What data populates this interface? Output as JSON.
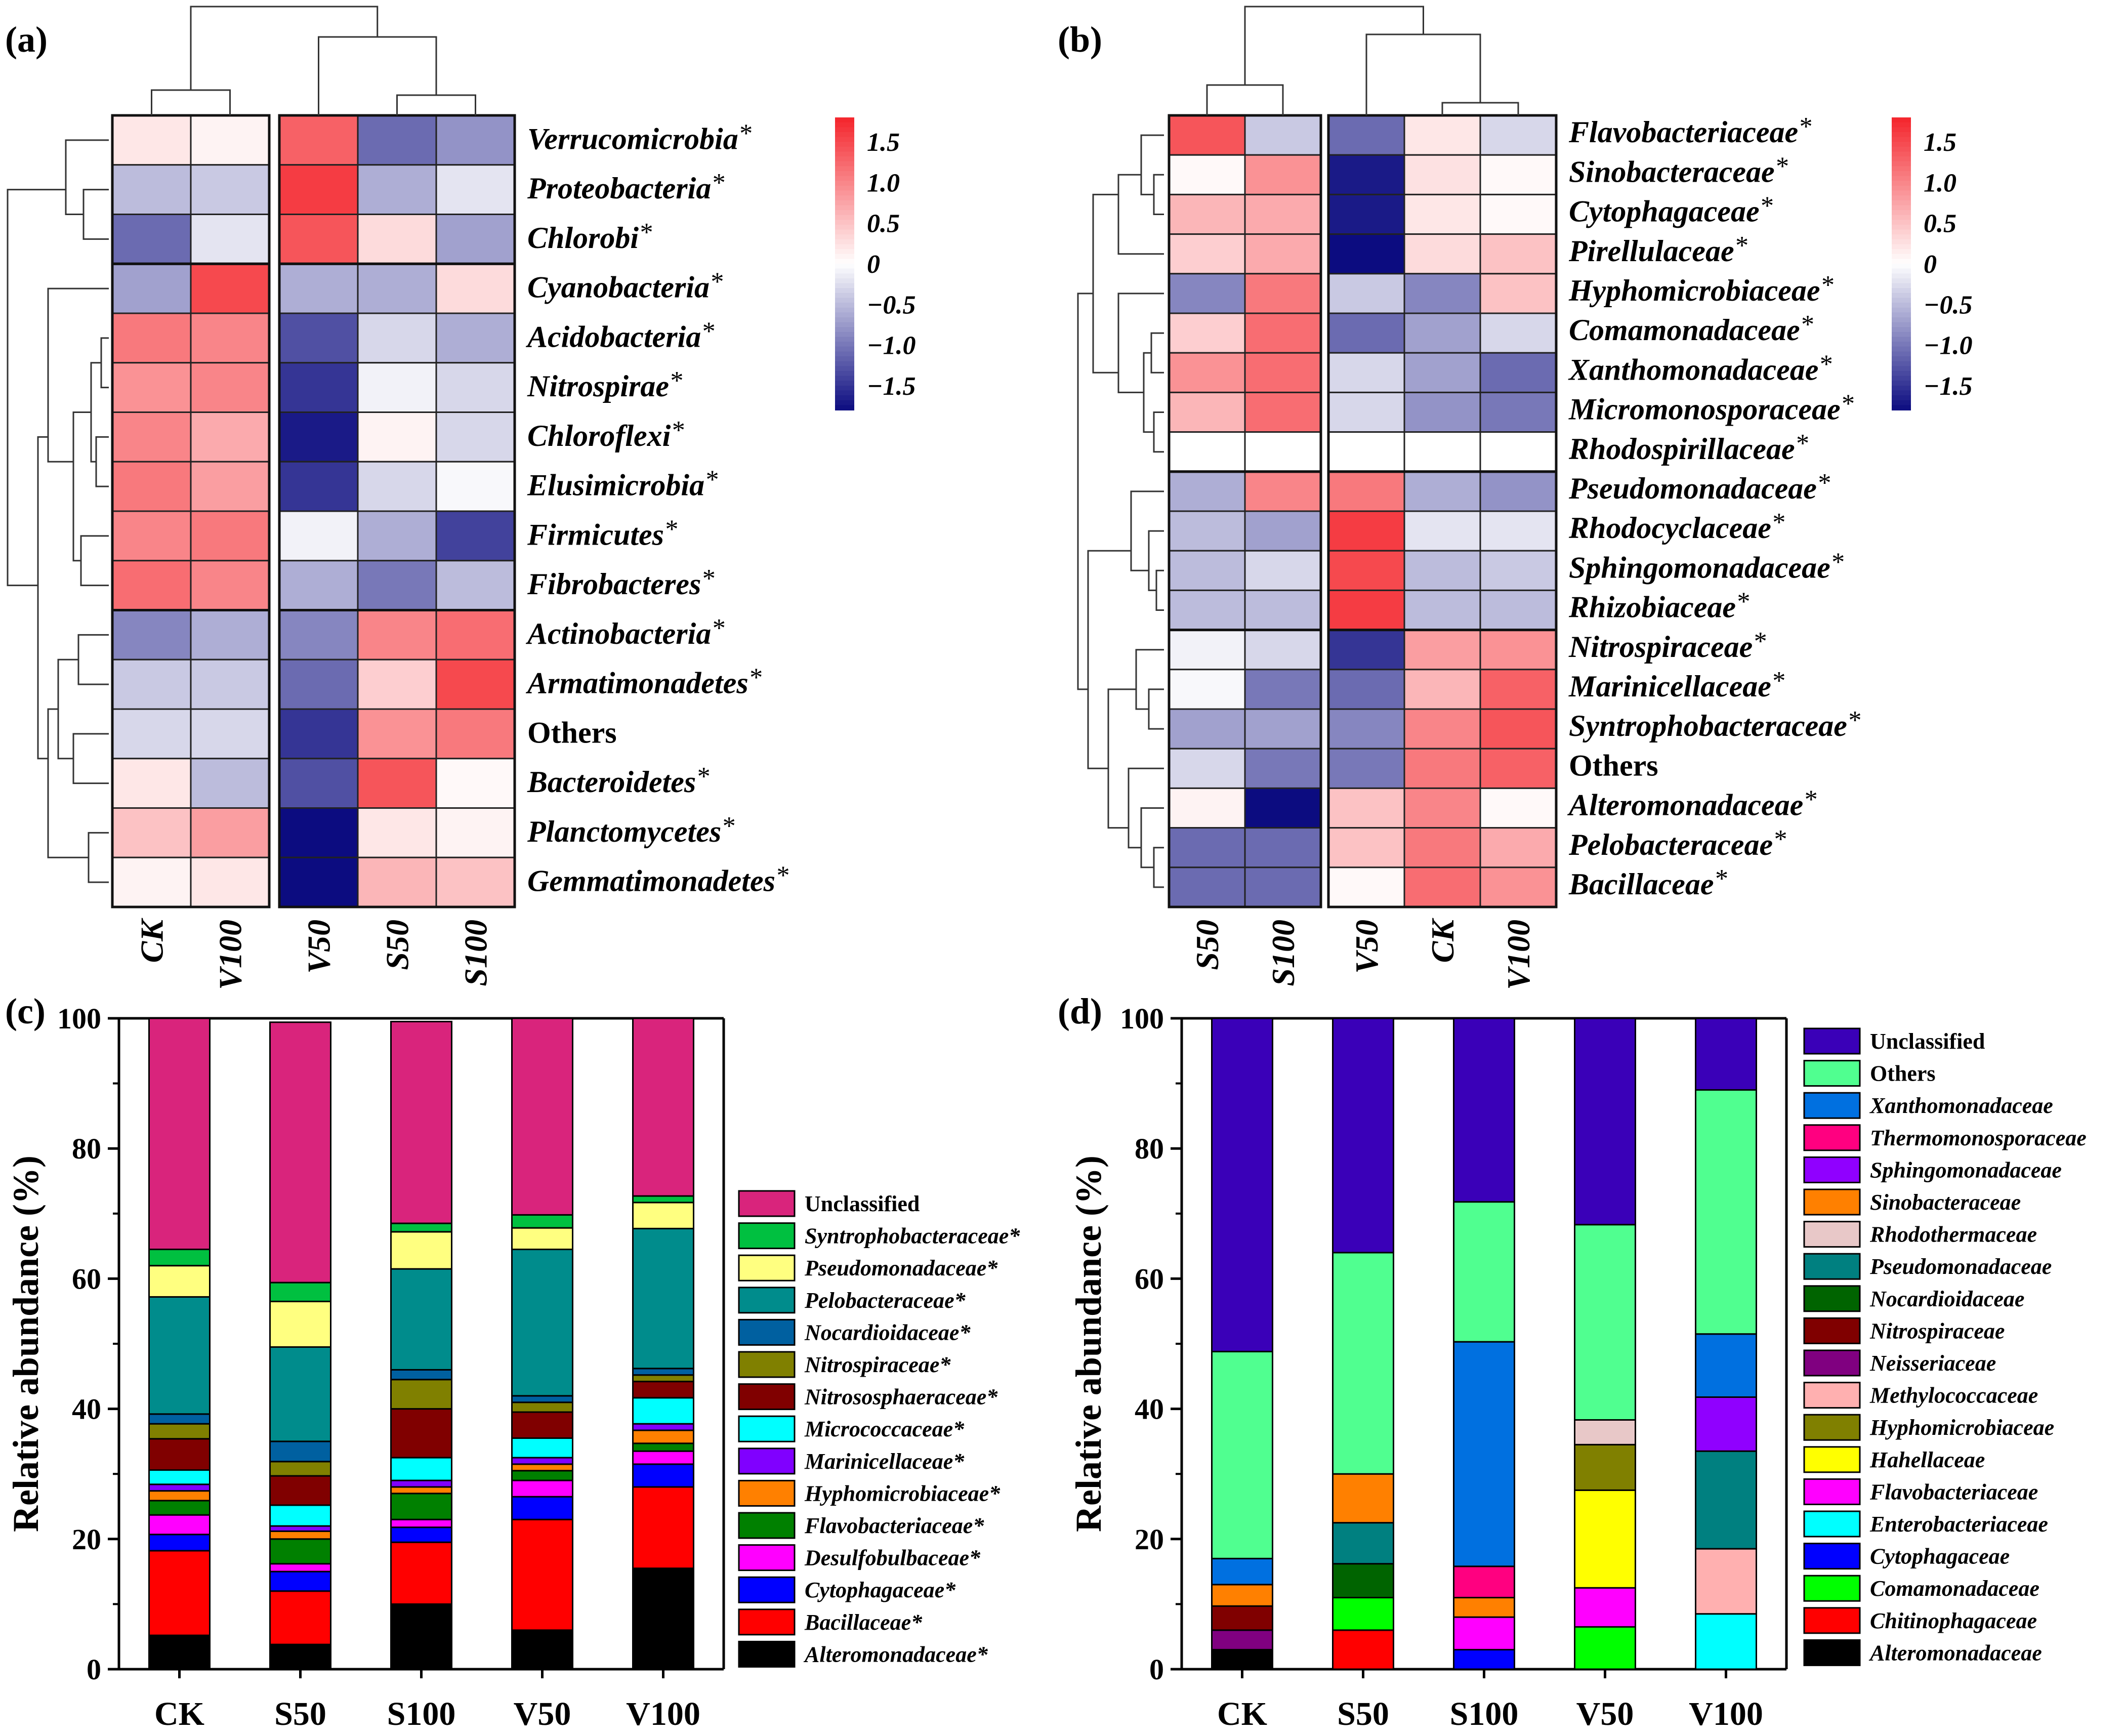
{
  "panel_labels": [
    "(a)",
    "(b)",
    "(c)",
    "(d)"
  ],
  "colorbar": {
    "ticks": [
      "1.5",
      "1.0",
      "0.5",
      "0",
      "−0.5",
      "−1.0",
      "−1.5"
    ],
    "ticks_values": [
      1.5,
      1.0,
      0.5,
      0,
      -0.5,
      -1.0,
      -1.5
    ],
    "range": [
      -1.8,
      1.8
    ],
    "low_color": "#0c0c80",
    "mid_color": "#ffffff",
    "high_color": "#f4242b"
  },
  "chart_data": [
    {
      "id": "a",
      "type": "heatmap",
      "title": "(a)",
      "columns": [
        "CK",
        "V100",
        "V50",
        "S50",
        "S100"
      ],
      "rows": [
        {
          "name": "Verrucomicrobia",
          "star": "*",
          "italic": true
        },
        {
          "name": "Proteobacteria",
          "star": "*",
          "italic": true
        },
        {
          "name": "Chlorobi",
          "star": "*",
          "italic": true
        },
        {
          "name": "Cyanobacteria",
          "star": "*",
          "italic": true
        },
        {
          "name": "Acidobacteria",
          "star": "*",
          "italic": true
        },
        {
          "name": "Nitrospirae",
          "star": "*",
          "italic": true
        },
        {
          "name": "Chloroflexi",
          "star": "*",
          "italic": true
        },
        {
          "name": "Elusimicrobia",
          "star": "*",
          "italic": true
        },
        {
          "name": "Firmicutes",
          "star": "*",
          "italic": true
        },
        {
          "name": "Fibrobacteres",
          "star": "*",
          "italic": true
        },
        {
          "name": "Actinobacteria",
          "star": "*",
          "italic": true
        },
        {
          "name": "Armatimonadetes",
          "star": "*",
          "italic": true
        },
        {
          "name": "Others",
          "star": "",
          "italic": false
        },
        {
          "name": "Bacteroidetes",
          "star": "*",
          "italic": true
        },
        {
          "name": "Planctomycetes",
          "star": "*",
          "italic": true
        },
        {
          "name": "Gemmatimonadetes",
          "star": "*",
          "italic": true
        }
      ],
      "values": [
        [
          0.2,
          0.1,
          1.3,
          -1.1,
          -0.8
        ],
        [
          -0.5,
          -0.4,
          1.6,
          -0.6,
          -0.2
        ],
        [
          -1.1,
          -0.2,
          1.4,
          0.3,
          -0.7
        ],
        [
          -0.7,
          1.5,
          -0.6,
          -0.6,
          0.3
        ],
        [
          1.1,
          1.0,
          -1.3,
          -0.3,
          -0.6
        ],
        [
          0.9,
          1.0,
          -1.5,
          -0.1,
          -0.3
        ],
        [
          1.0,
          0.7,
          -1.7,
          0.1,
          -0.3
        ],
        [
          1.1,
          0.8,
          -1.5,
          -0.3,
          -0.05
        ],
        [
          1.0,
          1.1,
          -0.1,
          -0.6,
          -1.4
        ],
        [
          1.2,
          1.0,
          -0.6,
          -1.0,
          -0.5
        ],
        [
          -0.9,
          -0.6,
          -0.9,
          1.0,
          1.2
        ],
        [
          -0.4,
          -0.4,
          -1.1,
          0.4,
          1.5
        ],
        [
          -0.3,
          -0.3,
          -1.5,
          0.9,
          1.1
        ],
        [
          0.2,
          -0.5,
          -1.3,
          1.4,
          0.05
        ],
        [
          0.5,
          0.8,
          -1.8,
          0.2,
          0.1
        ],
        [
          0.1,
          0.2,
          -1.8,
          0.6,
          0.5
        ]
      ],
      "column_groups": [
        2,
        3
      ],
      "row_groups": [
        3,
        7,
        6
      ]
    },
    {
      "id": "b",
      "type": "heatmap",
      "title": "(b)",
      "columns": [
        "S50",
        "S100",
        "V50",
        "CK",
        "V100"
      ],
      "rows": [
        {
          "name": "Flavobacteriaceae",
          "star": "*",
          "italic": true
        },
        {
          "name": "Sinobacteraceae",
          "star": "*",
          "italic": true
        },
        {
          "name": "Cytophagaceae",
          "star": "*",
          "italic": true
        },
        {
          "name": "Pirellulaceae",
          "star": "*",
          "italic": true
        },
        {
          "name": "Hyphomicrobiaceae",
          "star": "*",
          "italic": true
        },
        {
          "name": "Comamonadaceae",
          "star": "*",
          "italic": true
        },
        {
          "name": "Xanthomonadaceae",
          "star": "*",
          "italic": true
        },
        {
          "name": "Micromonosporaceae",
          "star": "*",
          "italic": true
        },
        {
          "name": "Rhodospirillaceae",
          "star": "*",
          "italic": true
        },
        {
          "name": "Pseudomonadaceae",
          "star": "*",
          "italic": true
        },
        {
          "name": "Rhodocyclaceae",
          "star": "*",
          "italic": true
        },
        {
          "name": "Sphingomonadaceae",
          "star": "*",
          "italic": true
        },
        {
          "name": "Rhizobiaceae",
          "star": "*",
          "italic": true
        },
        {
          "name": "Nitrospiraceae",
          "star": "*",
          "italic": true
        },
        {
          "name": "Marinicellaceae",
          "star": "*",
          "italic": true
        },
        {
          "name": "Syntrophobacteraceae",
          "star": "*",
          "italic": true
        },
        {
          "name": "Others",
          "star": "",
          "italic": false
        },
        {
          "name": "Alteromonadaceae",
          "star": "*",
          "italic": true
        },
        {
          "name": "Pelobacteraceae",
          "star": "*",
          "italic": true
        },
        {
          "name": "Bacillaceae",
          "star": "*",
          "italic": true
        }
      ],
      "values": [
        [
          1.4,
          -0.4,
          -1.1,
          0.2,
          -0.3
        ],
        [
          0.05,
          0.9,
          -1.7,
          0.25,
          0.05
        ],
        [
          0.6,
          0.7,
          -1.7,
          0.2,
          0.05
        ],
        [
          0.4,
          0.7,
          -1.8,
          0.3,
          0.5
        ],
        [
          -0.9,
          1.1,
          -0.4,
          -0.9,
          0.5
        ],
        [
          0.4,
          1.2,
          -1.1,
          -0.7,
          -0.3
        ],
        [
          0.9,
          1.2,
          -0.3,
          -0.7,
          -1.1
        ],
        [
          0.6,
          1.2,
          -0.3,
          -0.8,
          -1.0
        ],
        [
          null,
          null,
          null,
          null,
          null
        ],
        [
          -0.6,
          1.0,
          1.1,
          -0.6,
          -0.8
        ],
        [
          -0.5,
          -0.7,
          1.6,
          -0.2,
          -0.2
        ],
        [
          -0.5,
          -0.3,
          1.5,
          -0.5,
          -0.4
        ],
        [
          -0.5,
          -0.5,
          1.6,
          -0.5,
          -0.5
        ],
        [
          -0.1,
          -0.3,
          -1.5,
          0.8,
          0.9
        ],
        [
          -0.05,
          -1.0,
          -1.1,
          0.6,
          1.3
        ],
        [
          -0.7,
          -0.7,
          -0.9,
          1.0,
          1.4
        ],
        [
          -0.3,
          -1.0,
          -1.0,
          1.1,
          1.3
        ],
        [
          0.1,
          -1.8,
          0.5,
          1.0,
          0.05
        ],
        [
          -1.1,
          -1.1,
          0.5,
          1.1,
          0.7
        ],
        [
          -1.1,
          -1.1,
          0.05,
          1.2,
          0.9
        ]
      ],
      "column_groups": [
        2,
        3
      ],
      "row_groups": [
        9,
        4,
        7
      ]
    },
    {
      "id": "c",
      "type": "bar",
      "stacked": true,
      "title": "(c)",
      "xlabel": "",
      "ylabel": "Relative abundance (%)",
      "ylim": [
        0,
        100
      ],
      "yticks": [
        0,
        20,
        40,
        60,
        80,
        100
      ],
      "categories": [
        "CK",
        "S50",
        "S100",
        "V50",
        "V100"
      ],
      "series": [
        {
          "name": "Alteromonadaceae*",
          "color": "#000000",
          "values": [
            5.2,
            3.8,
            10.0,
            6.0,
            15.5
          ]
        },
        {
          "name": "Bacillaceae*",
          "color": "#ff0000",
          "values": [
            13.0,
            8.2,
            9.5,
            17.0,
            12.5
          ]
        },
        {
          "name": "Cytophagaceae*",
          "color": "#0000ff",
          "values": [
            2.5,
            3.0,
            2.3,
            3.5,
            3.5
          ]
        },
        {
          "name": "Desulfobulbaceae*",
          "color": "#ff00ff",
          "values": [
            3.0,
            1.2,
            1.2,
            2.5,
            2.0
          ]
        },
        {
          "name": "Flavobacteriaceae*",
          "color": "#008000",
          "values": [
            2.2,
            3.8,
            4.0,
            1.5,
            1.2
          ]
        },
        {
          "name": "Hyphomicrobiaceae*",
          "color": "#ff8000",
          "values": [
            1.5,
            1.2,
            1.0,
            1.0,
            2.0
          ]
        },
        {
          "name": "Marinicellaceae*",
          "color": "#8000ff",
          "values": [
            1.0,
            0.8,
            1.0,
            1.0,
            1.0
          ]
        },
        {
          "name": "Micrococcaceae*",
          "color": "#00ffff",
          "values": [
            2.2,
            3.2,
            3.5,
            3.0,
            4.0
          ]
        },
        {
          "name": "Nitrososphaeraceae*",
          "color": "#800000",
          "values": [
            4.8,
            4.5,
            7.5,
            4.0,
            2.5
          ]
        },
        {
          "name": "Nitrospiraceae*",
          "color": "#808000",
          "values": [
            2.3,
            2.2,
            4.5,
            1.5,
            1.0
          ]
        },
        {
          "name": "Nocardioidaceae*",
          "color": "#0060a0",
          "values": [
            1.5,
            3.1,
            1.5,
            1.0,
            1.0
          ]
        },
        {
          "name": "Pelobacteraceae*",
          "color": "#008c8c",
          "values": [
            18.0,
            14.5,
            15.5,
            22.5,
            21.5
          ]
        },
        {
          "name": "Pseudomonadaceae*",
          "color": "#ffff80",
          "values": [
            4.8,
            7.0,
            5.7,
            3.3,
            4.0
          ]
        },
        {
          "name": "Syntrophobacteraceae*",
          "color": "#00c040",
          "values": [
            2.5,
            2.9,
            1.3,
            2.0,
            1.0
          ]
        },
        {
          "name": "Unclassified",
          "color": "#d9247c",
          "values": [
            35.5,
            40.0,
            31.0,
            30.2,
            27.3
          ]
        }
      ],
      "legend_placement": "right"
    },
    {
      "id": "d",
      "type": "bar",
      "stacked": true,
      "title": "(d)",
      "xlabel": "",
      "ylabel": "Relative abundance (%)",
      "ylim": [
        0,
        100
      ],
      "yticks": [
        0,
        20,
        40,
        60,
        80,
        100
      ],
      "categories": [
        "CK",
        "S50",
        "S100",
        "V50",
        "V100"
      ],
      "series": [
        {
          "name": "Alteromonadaceae",
          "color": "#000000",
          "values": [
            3.0,
            0,
            0,
            0,
            0
          ]
        },
        {
          "name": "Chitinophagaceae",
          "color": "#ff0000",
          "values": [
            0,
            6.0,
            0,
            0,
            0
          ]
        },
        {
          "name": "Comamonadaceae",
          "color": "#00ff00",
          "values": [
            0,
            5.0,
            0,
            6.5,
            0
          ]
        },
        {
          "name": "Cytophagaceae",
          "color": "#0000ff",
          "values": [
            0,
            0,
            3.0,
            0,
            0
          ]
        },
        {
          "name": "Enterobacteriaceae",
          "color": "#00ffff",
          "values": [
            0,
            0,
            0,
            0,
            8.5
          ]
        },
        {
          "name": "Flavobacteriaceae",
          "color": "#ff00ff",
          "values": [
            0,
            0,
            5.0,
            6.0,
            0
          ]
        },
        {
          "name": "Hahellaceae",
          "color": "#ffff00",
          "values": [
            0,
            0,
            0,
            15.0,
            0
          ]
        },
        {
          "name": "Hyphomicrobiaceae",
          "color": "#808000",
          "values": [
            0,
            0,
            0,
            7.0,
            0
          ]
        },
        {
          "name": "Methylococcaceae",
          "color": "#ffb0b0",
          "values": [
            0,
            0,
            0,
            0,
            10.0
          ]
        },
        {
          "name": "Neisseriaceae",
          "color": "#800080",
          "values": [
            3.0,
            0,
            0,
            0,
            0
          ]
        },
        {
          "name": "Nitrospiraceae",
          "color": "#800000",
          "values": [
            3.7,
            0,
            0,
            0,
            0
          ]
        },
        {
          "name": "Nocardioidaceae",
          "color": "#006400",
          "values": [
            0,
            5.2,
            0,
            0,
            0
          ]
        },
        {
          "name": "Pseudomonadaceae",
          "color": "#008080",
          "values": [
            0,
            6.3,
            0,
            0,
            15.0
          ]
        },
        {
          "name": "Rhodothermaceae",
          "color": "#e8c8c8",
          "values": [
            0,
            0,
            0,
            3.8,
            0
          ]
        },
        {
          "name": "Sinobacteraceae",
          "color": "#ff8000",
          "values": [
            3.3,
            7.5,
            3.0,
            0,
            0
          ]
        },
        {
          "name": "Sphingomonadaceae",
          "color": "#9000ff",
          "values": [
            0,
            0,
            0,
            0,
            8.3
          ]
        },
        {
          "name": "Thermomonosporaceae",
          "color": "#ff0080",
          "values": [
            0,
            0,
            4.8,
            0,
            0
          ]
        },
        {
          "name": "Xanthomonadaceae",
          "color": "#0070e0",
          "values": [
            4.0,
            0,
            34.5,
            0,
            9.7
          ]
        },
        {
          "name": "Others",
          "color": "#50ff90",
          "values": [
            31.8,
            34.0,
            21.5,
            30.0,
            37.5
          ]
        },
        {
          "name": "Unclassified",
          "color": "#3a00b8",
          "values": [
            51.2,
            36.0,
            28.2,
            31.7,
            11.0
          ]
        }
      ],
      "legend_order": [
        "Unclassified",
        "Others",
        "Xanthomonadaceae",
        "Thermomonosporaceae",
        "Sphingomonadaceae",
        "Sinobacteraceae",
        "Rhodothermaceae",
        "Pseudomonadaceae",
        "Nocardioidaceae",
        "Nitrospiraceae",
        "Neisseriaceae",
        "Methylococcaceae",
        "Hyphomicrobiaceae",
        "Hahellaceae",
        "Flavobacteriaceae",
        "Enterobacteriaceae",
        "Cytophagaceae",
        "Comamonadaceae",
        "Chitinophagaceae",
        "Alteromonadaceae"
      ],
      "legend_placement": "right"
    }
  ]
}
